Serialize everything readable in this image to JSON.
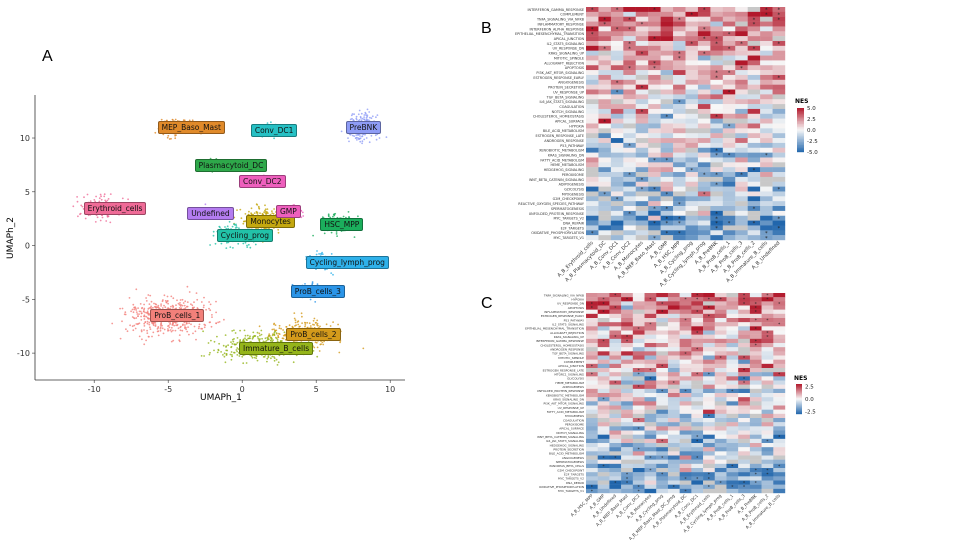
{
  "panels": {
    "a": "A",
    "b": "B",
    "c": "C"
  },
  "colors": {
    "pos": "#b2182b",
    "neg": "#2166ac",
    "mid": "#f7f7f7",
    "na": "#c8c8c8"
  },
  "chart_data": [
    {
      "type": "scatter",
      "title": "",
      "xlabel": "UMAPh_1",
      "ylabel": "UMAPh_2",
      "xlim": [
        -14,
        11
      ],
      "ylim": [
        -12.5,
        14
      ],
      "xticks": [
        "-10",
        "-5",
        "0",
        "5",
        "10"
      ],
      "xtick_values": [
        -10,
        -5,
        0,
        5,
        10
      ],
      "yticks": [
        "10",
        "5",
        "0",
        "-5",
        "-10"
      ],
      "ytick_values": [
        10,
        5,
        0,
        -5,
        -10
      ],
      "clusters": [
        {
          "label": "MEP_Baso_Mast",
          "color": "#e08a2a",
          "x": -4.5,
          "y": 11.0,
          "sx": 1.0,
          "sy": 0.7,
          "n": 160
        },
        {
          "label": "Conv_DC1",
          "color": "#26c0c4",
          "x": 1.8,
          "y": 10.7,
          "sx": 0.45,
          "sy": 0.6,
          "n": 80
        },
        {
          "label": "PreBNK",
          "color": "#8e9cf6",
          "x": 8.2,
          "y": 11.0,
          "sx": 0.9,
          "sy": 1.2,
          "n": 200
        },
        {
          "label": "Plasmacytoid_DC",
          "color": "#2ea84a",
          "x": -2.0,
          "y": 7.5,
          "sx": 0.8,
          "sy": 0.45,
          "n": 110
        },
        {
          "label": "Conv_DC2",
          "color": "#ee5fbd",
          "x": 1.0,
          "y": 6.0,
          "sx": 0.7,
          "sy": 0.4,
          "n": 60
        },
        {
          "label": "Erythroid_cells",
          "color": "#ef6b97",
          "x": -9.5,
          "y": 3.5,
          "sx": 1.6,
          "sy": 1.1,
          "n": 120
        },
        {
          "label": "Undefined",
          "color": "#b47cf0",
          "x": -2.5,
          "y": 3.0,
          "sx": 0.6,
          "sy": 0.5,
          "n": 40
        },
        {
          "label": "Monocytes",
          "color": "#c4a80f",
          "x": 1.5,
          "y": 2.3,
          "sx": 1.3,
          "sy": 1.1,
          "n": 260
        },
        {
          "label": "GMP",
          "color": "#ee5fbd",
          "x": 3.5,
          "y": 3.2,
          "sx": 0.5,
          "sy": 0.5,
          "n": 60
        },
        {
          "label": "HSC_MPP",
          "color": "#1bae5c",
          "x": 6.5,
          "y": 2.0,
          "sx": 1.1,
          "sy": 0.8,
          "n": 170
        },
        {
          "label": "Cycling_prog",
          "color": "#22c2a8",
          "x": -0.5,
          "y": 1.0,
          "sx": 1.3,
          "sy": 0.8,
          "n": 170
        },
        {
          "label": "Cycling_lymph_prog",
          "color": "#2fb1ea",
          "x": 5.5,
          "y": -1.5,
          "sx": 0.9,
          "sy": 0.7,
          "n": 90
        },
        {
          "label": "ProB_cells_3",
          "color": "#2b95e8",
          "x": 4.5,
          "y": -4.2,
          "sx": 0.9,
          "sy": 0.6,
          "n": 90
        },
        {
          "label": "ProB_cells_1",
          "color": "#f2807a",
          "x": -5.0,
          "y": -6.5,
          "sx": 2.5,
          "sy": 1.6,
          "n": 480
        },
        {
          "label": "ProB_cells_2",
          "color": "#d49a1b",
          "x": 4.2,
          "y": -8.2,
          "sx": 2.2,
          "sy": 1.3,
          "n": 260
        },
        {
          "label": "Immature_B_cells",
          "color": "#95b51a",
          "x": 1.0,
          "y": -9.5,
          "sx": 2.6,
          "sy": 1.2,
          "n": 360
        }
      ]
    },
    {
      "type": "heatmap",
      "title": "",
      "legend_title": "NES",
      "legend_ticks": [
        "5.0",
        "2.5",
        "0.0",
        "-2.5",
        "-5.0"
      ],
      "legend_values": [
        5,
        2.5,
        0,
        -2.5,
        -5
      ],
      "vmin": -5,
      "vmax": 5,
      "rows": [
        "INTERFERON_GAMMA_RESPONSE",
        "COMPLEMENT",
        "TNFA_SIGNALING_VIA_NFKB",
        "INFLAMMATORY_RESPONSE",
        "INTERFERON_ALPHA_RESPONSE",
        "EPITHELIAL_MESENCHYMAL_TRANSITION",
        "APICAL_JUNCTION",
        "IL2_STAT5_SIGNALING",
        "UV_RESPONSE_DN",
        "KRAS_SIGNALING_UP",
        "MITOTIC_SPINDLE",
        "ALLOGRAFT_REJECTION",
        "APOPTOSIS",
        "PI3K_AKT_MTOR_SIGNALING",
        "ESTROGEN_RESPONSE_EARLY",
        "ANGIOGENESIS",
        "PROTEIN_SECRETION",
        "UV_RESPONSE_UP",
        "TGF_BETA_SIGNALING",
        "IL6_JAK_STAT3_SIGNALING",
        "COAGULATION",
        "NOTCH_SIGNALING",
        "CHOLESTEROL_HOMEOSTASIS",
        "APICAL_SURFACE",
        "HYPOXIA",
        "BILE_ACID_METABOLISM",
        "ESTROGEN_RESPONSE_LATE",
        "ANDROGEN_RESPONSE",
        "P53_PATHWAY",
        "XENOBIOTIC_METABOLISM",
        "KRAS_SIGNALING_DN",
        "FATTY_ACID_METABOLISM",
        "HEME_METABOLISM",
        "HEDGEHOG_SIGNALING",
        "PEROXISOME",
        "WNT_BETA_CATENIN_SIGNALING",
        "ADIPOGENESIS",
        "GLYCOLYSIS",
        "MYOGENESIS",
        "G2M_CHECKPOINT",
        "REACTIVE_OXYGEN_SPECIES_PATHWAY",
        "SPERMATOGENESIS",
        "UNFOLDED_PROTEIN_RESPONSE",
        "MYC_TARGETS_V2",
        "DNA_REPAIR",
        "E2F_TARGETS",
        "OXIDATIVE_PHOSPHORYLATION",
        "MYC_TARGETS_V1"
      ],
      "columns": [
        "A_B_Erythroid_cells",
        "A_B_Plasmacytoid_DC",
        "A_B_Conv_DC1",
        "A_B_Conv_DC2",
        "A_B_Monocytes",
        "A_B_MEP_Baso_Mast",
        "A_B_GMP",
        "A_B_HSC_MPP",
        "A_B_Cycling_prog",
        "A_B_Cycling_lymph_prog",
        "A_B_PreBNK",
        "A_B_ProB_cells_1",
        "A_B_ProB_cells_3",
        "A_B_ProB_cells_2",
        "A_B_Immature_B_cells",
        "A_B_Undefined"
      ],
      "rows_n": 48,
      "columns_n": 16,
      "pattern": "top rows positive (red), bottom rows negative (blue), grey = NA, * = significant"
    },
    {
      "type": "heatmap",
      "title": "",
      "legend_title": "NES",
      "legend_ticks": [
        "2.5",
        "0.0",
        "-2.5"
      ],
      "legend_values": [
        2.5,
        0,
        -2.5
      ],
      "vmin": -3,
      "vmax": 3,
      "rows": [
        "TNFA_SIGNALING_VIA_NFKB",
        "HYPOXIA",
        "UV_RESPONSE_DN",
        "APOPTOSIS",
        "INFLAMMATORY_RESPONSE",
        "ESTROGEN_RESPONSE_EARLY",
        "P53_PATHWAY",
        "IL2_STAT5_SIGNALING",
        "EPITHELIAL_MESENCHYMAL_TRANSITION",
        "ALLOGRAFT_REJECTION",
        "KRAS_SIGNALING_UP",
        "INTERFERON_GAMMA_RESPONSE",
        "CHOLESTEROL_HOMEOSTASIS",
        "ANDROGEN_RESPONSE",
        "TGF_BETA_SIGNALING",
        "MITOTIC_SPINDLE",
        "COMPLEMENT",
        "APICAL_JUNCTION",
        "ESTROGEN_RESPONSE_LATE",
        "MTORC1_SIGNALING",
        "GLYCOLYSIS",
        "HEME_METABOLISM",
        "ADIPOGENESIS",
        "UNFOLDED_PROTEIN_RESPONSE",
        "XENOBIOTIC_METABOLISM",
        "KRAS_SIGNALING_DN",
        "PI3K_AKT_MTOR_SIGNALING",
        "UV_RESPONSE_UP",
        "FATTY_ACID_METABOLISM",
        "MYOGENESIS",
        "COAGULATION",
        "PEROXISOME",
        "APICAL_SURFACE",
        "NOTCH_SIGNALING",
        "WNT_BETA_CATENIN_SIGNALING",
        "IL6_JAK_STAT3_SIGNALING",
        "HEDGEHOG_SIGNALING",
        "PROTEIN_SECRETION",
        "BILE_ACID_METABOLISM",
        "ANGIOGENESIS",
        "SPERMATOGENESIS",
        "PANCREAS_BETA_CELLS",
        "G2M_CHECKPOINT",
        "E2F_TARGETS",
        "MYC_TARGETS_V2",
        "DNA_REPAIR",
        "OXIDATIVE_PHOSPHORYLATION",
        "MYC_TARGETS_V1"
      ],
      "columns": [
        "A_B_HSC_MPP",
        "A_B_GMP",
        "A_B_Undefined",
        "A_B_MEP_Baso_Mast",
        "A_B_Conv_DC2",
        "A_B_Monocytes",
        "A_B_Cycling_prog",
        "A_B_MEP_Baso_Mast_DC_prog",
        "A_B_Plasmacytoid_DC",
        "A_B_Conv_DC1",
        "A_B_Erythroid_cells",
        "A_B_Cycling_lymph_prog",
        "A_B_ProB_cells_1",
        "A_B_ProB_cells_3",
        "A_B_PreBNK",
        "A_B_ProB_cells_2",
        "A_B_Immature_B_cells"
      ],
      "rows_n": 48,
      "columns_n": 17,
      "pattern": "top rows positive (red), lower rows mixed/negative, grey = NA, * = significant"
    }
  ]
}
